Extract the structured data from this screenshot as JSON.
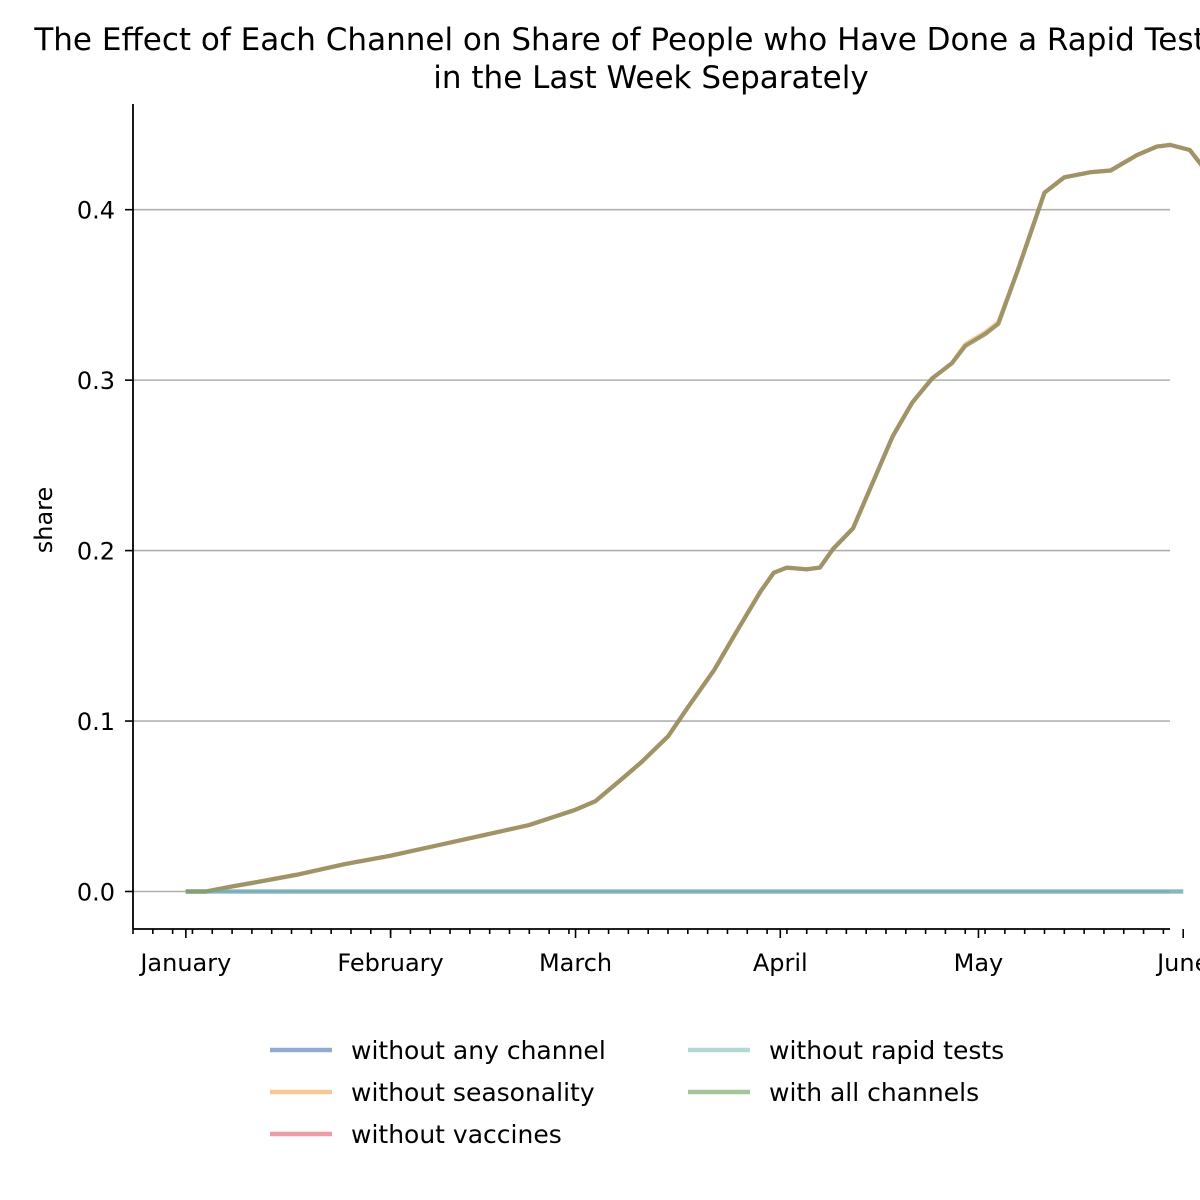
{
  "chart_data": {
    "type": "line",
    "title": "The Effect of Each Channel on Share of People who Have Done a Rapid Test in the Last Week Separately",
    "title_lines": [
      "The Effect of Each Channel on Share of People who Have Done a Rapid Test",
      "in the Last Week Separately"
    ],
    "xlabel": "",
    "ylabel": "share",
    "x_axis_type": "date",
    "xlim": [
      "2021-01-07",
      "2021-06-13"
    ],
    "ylim": [
      -0.022,
      0.462
    ],
    "y_ticks": [
      0.0,
      0.1,
      0.2,
      0.3,
      0.4
    ],
    "y_tick_labels": [
      "0.0",
      "0.1",
      "0.2",
      "0.3",
      "0.4"
    ],
    "x_ticks": [
      "2021-01-15",
      "2021-02-15",
      "2021-03-15",
      "2021-04-15",
      "2021-05-15",
      "2021-06-15"
    ],
    "x_tick_labels": [
      "January",
      "February",
      "March",
      "April",
      "May",
      "June"
    ],
    "grid": "horizontal",
    "legend_position": "bottom-center",
    "series": [
      {
        "name": "without any channel",
        "color": "#4c72b0",
        "points": [
          [
            "2021-01-15",
            0.0
          ],
          [
            "2021-06-15",
            0.0
          ]
        ]
      },
      {
        "name": "without seasonality",
        "color": "#f6a04d",
        "points": [
          [
            "2021-01-15",
            0.0
          ],
          [
            "2021-01-18",
            0.0
          ],
          [
            "2021-01-22",
            0.003
          ],
          [
            "2021-01-25",
            0.005
          ],
          [
            "2021-02-01",
            0.01
          ],
          [
            "2021-02-08",
            0.016
          ],
          [
            "2021-02-15",
            0.021
          ],
          [
            "2021-02-22",
            0.027
          ],
          [
            "2021-03-01",
            0.033
          ],
          [
            "2021-03-08",
            0.039
          ],
          [
            "2021-03-15",
            0.048
          ],
          [
            "2021-03-18",
            0.053
          ],
          [
            "2021-03-22",
            0.066
          ],
          [
            "2021-03-25",
            0.076
          ],
          [
            "2021-03-29",
            0.091
          ],
          [
            "2021-04-01",
            0.108
          ],
          [
            "2021-04-05",
            0.13
          ],
          [
            "2021-04-08",
            0.15
          ],
          [
            "2021-04-12",
            0.176
          ],
          [
            "2021-04-14",
            0.187
          ],
          [
            "2021-04-16",
            0.19
          ],
          [
            "2021-04-19",
            0.189
          ],
          [
            "2021-04-21",
            0.19
          ],
          [
            "2021-04-23",
            0.201
          ],
          [
            "2021-04-26",
            0.213
          ],
          [
            "2021-04-29",
            0.24
          ],
          [
            "2021-05-02",
            0.267
          ],
          [
            "2021-05-05",
            0.287
          ],
          [
            "2021-05-08",
            0.301
          ],
          [
            "2021-05-11",
            0.31
          ],
          [
            "2021-05-13",
            0.321
          ],
          [
            "2021-05-16",
            0.328
          ],
          [
            "2021-05-18",
            0.334
          ],
          [
            "2021-05-21",
            0.365
          ],
          [
            "2021-05-25",
            0.41
          ],
          [
            "2021-05-28",
            0.419
          ],
          [
            "2021-06-01",
            0.422
          ],
          [
            "2021-06-04",
            0.423
          ],
          [
            "2021-06-08",
            0.432
          ],
          [
            "2021-06-11",
            0.437
          ],
          [
            "2021-06-13",
            0.438
          ],
          [
            "2021-06-16",
            0.435
          ],
          [
            "2021-06-18",
            0.425
          ]
        ]
      },
      {
        "name": "without vaccines",
        "color": "#e05c6a",
        "points": [
          [
            "2021-01-15",
            0.0
          ],
          [
            "2021-01-18",
            0.0
          ],
          [
            "2021-01-22",
            0.003
          ],
          [
            "2021-01-25",
            0.005
          ],
          [
            "2021-02-01",
            0.01
          ],
          [
            "2021-02-08",
            0.016
          ],
          [
            "2021-02-15",
            0.021
          ],
          [
            "2021-02-22",
            0.027
          ],
          [
            "2021-03-01",
            0.033
          ],
          [
            "2021-03-08",
            0.039
          ],
          [
            "2021-03-15",
            0.048
          ],
          [
            "2021-03-18",
            0.053
          ],
          [
            "2021-03-22",
            0.066
          ],
          [
            "2021-03-25",
            0.076
          ],
          [
            "2021-03-29",
            0.091
          ],
          [
            "2021-04-01",
            0.108
          ],
          [
            "2021-04-05",
            0.13
          ],
          [
            "2021-04-08",
            0.15
          ],
          [
            "2021-04-12",
            0.176
          ],
          [
            "2021-04-14",
            0.187
          ],
          [
            "2021-04-16",
            0.19
          ],
          [
            "2021-04-19",
            0.189
          ],
          [
            "2021-04-21",
            0.19
          ],
          [
            "2021-04-23",
            0.201
          ],
          [
            "2021-04-26",
            0.213
          ],
          [
            "2021-04-29",
            0.24
          ],
          [
            "2021-05-02",
            0.267
          ],
          [
            "2021-05-05",
            0.287
          ],
          [
            "2021-05-08",
            0.301
          ],
          [
            "2021-05-11",
            0.31
          ],
          [
            "2021-05-13",
            0.32
          ],
          [
            "2021-05-16",
            0.327
          ],
          [
            "2021-05-18",
            0.333
          ],
          [
            "2021-05-21",
            0.365
          ],
          [
            "2021-05-25",
            0.41
          ],
          [
            "2021-05-28",
            0.419
          ],
          [
            "2021-06-01",
            0.422
          ],
          [
            "2021-06-04",
            0.423
          ],
          [
            "2021-06-08",
            0.432
          ],
          [
            "2021-06-11",
            0.437
          ],
          [
            "2021-06-13",
            0.438
          ],
          [
            "2021-06-16",
            0.435
          ],
          [
            "2021-06-18",
            0.425
          ]
        ]
      },
      {
        "name": "without rapid tests",
        "color": "#7fbfb8",
        "points": [
          [
            "2021-01-15",
            0.0
          ],
          [
            "2021-06-15",
            0.0
          ]
        ]
      },
      {
        "name": "with all channels",
        "color": "#6a9e5a",
        "points": [
          [
            "2021-01-15",
            0.0
          ],
          [
            "2021-01-18",
            0.0
          ],
          [
            "2021-01-22",
            0.003
          ],
          [
            "2021-01-25",
            0.005
          ],
          [
            "2021-02-01",
            0.01
          ],
          [
            "2021-02-08",
            0.016
          ],
          [
            "2021-02-15",
            0.021
          ],
          [
            "2021-02-22",
            0.027
          ],
          [
            "2021-03-01",
            0.033
          ],
          [
            "2021-03-08",
            0.039
          ],
          [
            "2021-03-15",
            0.048
          ],
          [
            "2021-03-18",
            0.053
          ],
          [
            "2021-03-22",
            0.066
          ],
          [
            "2021-03-25",
            0.076
          ],
          [
            "2021-03-29",
            0.091
          ],
          [
            "2021-04-01",
            0.108
          ],
          [
            "2021-04-05",
            0.13
          ],
          [
            "2021-04-08",
            0.15
          ],
          [
            "2021-04-12",
            0.176
          ],
          [
            "2021-04-14",
            0.187
          ],
          [
            "2021-04-16",
            0.19
          ],
          [
            "2021-04-19",
            0.189
          ],
          [
            "2021-04-21",
            0.19
          ],
          [
            "2021-04-23",
            0.201
          ],
          [
            "2021-04-26",
            0.213
          ],
          [
            "2021-04-29",
            0.24
          ],
          [
            "2021-05-02",
            0.267
          ],
          [
            "2021-05-05",
            0.287
          ],
          [
            "2021-05-08",
            0.301
          ],
          [
            "2021-05-11",
            0.31
          ],
          [
            "2021-05-13",
            0.32
          ],
          [
            "2021-05-16",
            0.327
          ],
          [
            "2021-05-18",
            0.333
          ],
          [
            "2021-05-21",
            0.365
          ],
          [
            "2021-05-25",
            0.41
          ],
          [
            "2021-05-28",
            0.419
          ],
          [
            "2021-06-01",
            0.422
          ],
          [
            "2021-06-04",
            0.423
          ],
          [
            "2021-06-08",
            0.432
          ],
          [
            "2021-06-11",
            0.437
          ],
          [
            "2021-06-13",
            0.438
          ],
          [
            "2021-06-16",
            0.435
          ],
          [
            "2021-06-18",
            0.425
          ]
        ]
      }
    ],
    "legend_order": [
      "without any channel",
      "without seasonality",
      "without vaccines",
      "without rapid tests",
      "with all channels"
    ]
  }
}
